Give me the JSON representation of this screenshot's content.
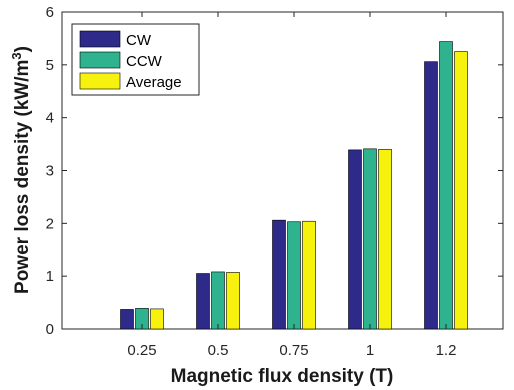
{
  "chart_data": {
    "type": "bar",
    "categories": [
      "0.25",
      "0.5",
      "0.75",
      "1",
      "1.2"
    ],
    "series": [
      {
        "name": "CW",
        "color": "#2e2a8a",
        "values": [
          0.37,
          1.05,
          2.06,
          3.39,
          5.06
        ]
      },
      {
        "name": "CCW",
        "color": "#2fb38f",
        "values": [
          0.39,
          1.08,
          2.03,
          3.41,
          5.44
        ]
      },
      {
        "name": "Average",
        "color": "#f7f20d",
        "values": [
          0.38,
          1.07,
          2.04,
          3.4,
          5.25
        ]
      }
    ],
    "xlabel": "Magnetic flux density (T)",
    "ylabel_main": "Power loss density (kW/m",
    "ylabel_sup": "3",
    "ylabel_close": ")",
    "ylim": [
      0,
      6
    ],
    "yticks": [
      "0",
      "1",
      "2",
      "3",
      "4",
      "5",
      "6"
    ],
    "grid": false,
    "legend_position": "top-left"
  }
}
